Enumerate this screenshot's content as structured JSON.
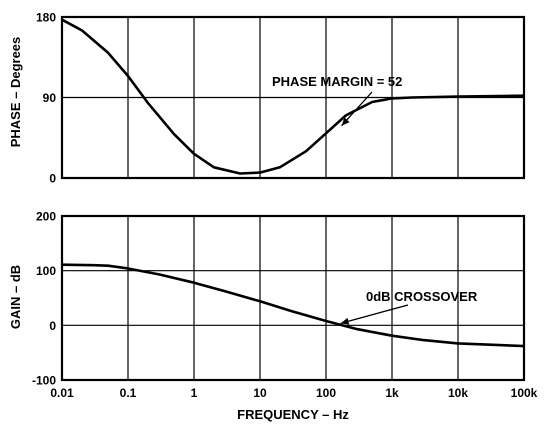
{
  "chart_data": [
    {
      "type": "line",
      "ylabel": "PHASE – Degrees",
      "xscale": "log",
      "xlim": [
        0.01,
        100000
      ],
      "ylim": [
        0,
        180
      ],
      "yticks": [
        0,
        90,
        180
      ],
      "grid": true,
      "series": [
        {
          "x": [
            0.01,
            0.02,
            0.05,
            0.1,
            0.2,
            0.5,
            1,
            2,
            5,
            10,
            20,
            50,
            100,
            200,
            500,
            1000,
            2000,
            10000,
            100000
          ],
          "values": [
            177,
            165,
            140,
            114,
            84,
            49,
            27,
            12,
            5,
            6,
            12,
            30,
            50,
            70,
            85,
            89,
            90,
            91,
            92
          ]
        }
      ],
      "annotations": [
        {
          "text": "PHASE MARGIN = 52",
          "x": 150,
          "y": 54
        }
      ]
    },
    {
      "type": "line",
      "ylabel": "GAIN – dB",
      "xlabel": "FREQUENCY – Hz",
      "xscale": "log",
      "xlim": [
        0.01,
        100000
      ],
      "ylim": [
        -100,
        200
      ],
      "yticks": [
        -100,
        0,
        100,
        200
      ],
      "xtick_labels": [
        "0.01",
        "0.1",
        "1",
        "10",
        "100",
        "1k",
        "10k",
        "100k"
      ],
      "grid": true,
      "series": [
        {
          "x": [
            0.01,
            0.03,
            0.05,
            0.1,
            0.3,
            1,
            3,
            10,
            30,
            100,
            300,
            1000,
            3000,
            10000,
            100000
          ],
          "values": [
            111,
            110,
            109,
            104,
            93,
            78,
            62,
            44,
            26,
            8,
            -7,
            -19,
            -27,
            -33,
            -38
          ]
        }
      ],
      "annotations": [
        {
          "text": "0dB CROSSOVER",
          "x": 150,
          "y": 0
        }
      ]
    }
  ]
}
